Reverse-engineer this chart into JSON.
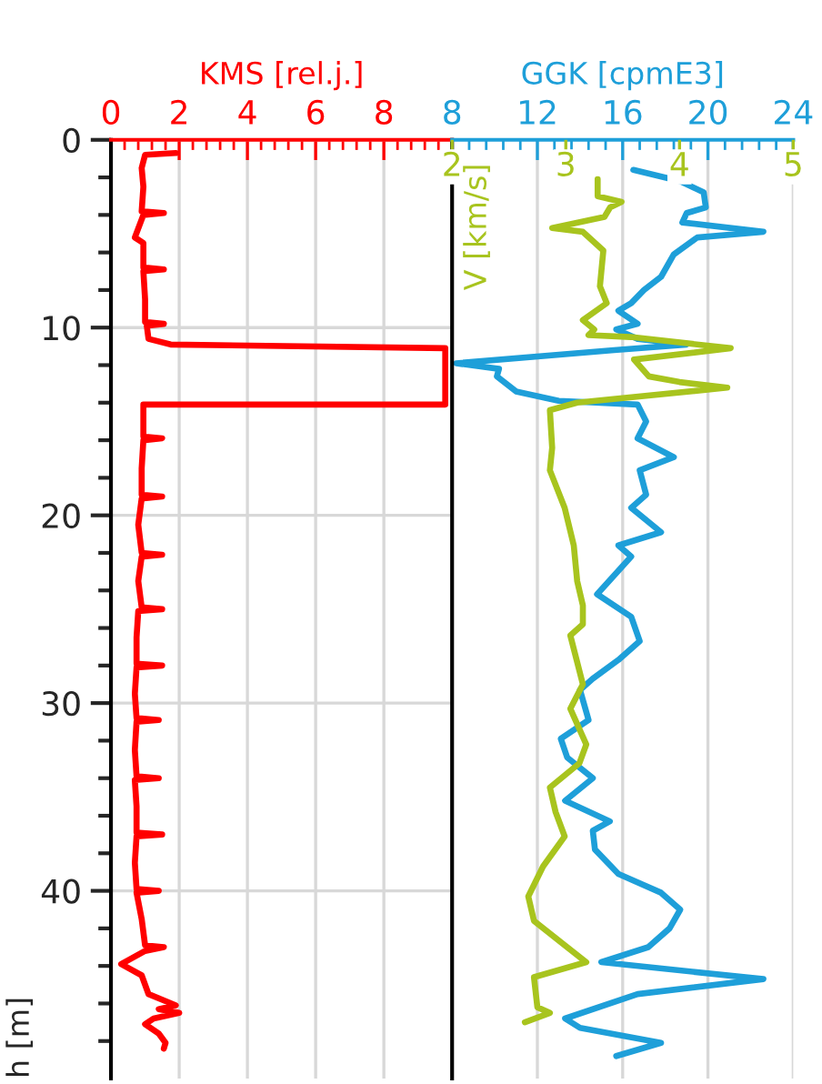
{
  "chart_data": [
    {
      "type": "line",
      "orientation": "horizontal",
      "xlabel": "KMS [rel.j.]",
      "ylabel": "h [m]",
      "xlim": [
        0,
        10
      ],
      "ylim": [
        50,
        0
      ],
      "grid": true,
      "xticks": [
        0,
        2,
        4,
        6,
        8,
        {
          "value": 10,
          "label": null
        },
        {
          "value": 0.4,
          "label": null
        },
        {
          "value": 0.8,
          "label": null
        },
        {
          "value": 1.2,
          "label": null
        },
        {
          "value": 1.6,
          "label": null
        },
        {
          "value": 2.4,
          "label": null
        },
        {
          "value": 2.8,
          "label": null
        },
        {
          "value": 3.2,
          "label": null
        },
        {
          "value": 3.6,
          "label": null
        },
        {
          "value": 4.4,
          "label": null
        },
        {
          "value": 4.8,
          "label": null
        },
        {
          "value": 5.2,
          "label": null
        },
        {
          "value": 5.6,
          "label": null
        },
        {
          "value": 6.4,
          "label": null
        },
        {
          "value": 6.8,
          "label": null
        },
        {
          "value": 7.2,
          "label": null
        },
        {
          "value": 7.6,
          "label": null
        },
        {
          "value": 8.4,
          "label": null
        },
        {
          "value": 8.8,
          "label": null
        },
        {
          "value": 9.2,
          "label": null
        },
        {
          "value": 9.6,
          "label": null
        }
      ],
      "yticks": [
        0,
        10,
        20,
        30,
        40,
        {
          "value": 2,
          "label": null
        },
        {
          "value": 4,
          "label": null
        },
        {
          "value": 6,
          "label": null
        },
        {
          "value": 8,
          "label": null
        },
        {
          "value": 12,
          "label": null
        },
        {
          "value": 14,
          "label": null
        },
        {
          "value": 16,
          "label": null
        },
        {
          "value": 18,
          "label": null
        },
        {
          "value": 22,
          "label": null
        },
        {
          "value": 24,
          "label": null
        },
        {
          "value": 26,
          "label": null
        },
        {
          "value": 28,
          "label": null
        },
        {
          "value": 32,
          "label": null
        },
        {
          "value": 34,
          "label": null
        },
        {
          "value": 36,
          "label": null
        },
        {
          "value": 38,
          "label": null
        },
        {
          "value": 42,
          "label": null
        },
        {
          "value": 44,
          "label": null
        },
        {
          "value": 46,
          "label": null
        },
        {
          "value": 48,
          "label": null
        }
      ],
      "series": [
        {
          "color": "#ff0000",
          "x": [
            0.7,
            0.8,
            1.5,
            2.5,
            3.8,
            3.9,
            4.0,
            5.2,
            5.5,
            6.8,
            6.9,
            7.0,
            8.5,
            9.7,
            9.8,
            9.9,
            10.6,
            10.9,
            11.1,
            14.1,
            14.1,
            15.8,
            15.9,
            16.0,
            17.5,
            18.9,
            19.0,
            19.1,
            20.5,
            22.0,
            22.1,
            22.2,
            23.5,
            24.9,
            25.0,
            25.1,
            26.5,
            27.9,
            28.0,
            28.1,
            29.5,
            30.8,
            30.9,
            31.0,
            32.5,
            33.9,
            34.0,
            34.1,
            35.5,
            36.9,
            37.0,
            37.1,
            38.5,
            39.9,
            40.0,
            40.1,
            41.5,
            42.9,
            43.0,
            43.2,
            43.9,
            44.5,
            45.5,
            46.1,
            46.3,
            46.5,
            46.8,
            47.1,
            47.6,
            48.1,
            48.4
          ],
          "values": [
            1.9,
            1.0,
            0.9,
            0.95,
            0.9,
            1.55,
            0.95,
            0.7,
            0.95,
            0.95,
            1.55,
            0.95,
            1.0,
            1.0,
            1.55,
            1.05,
            1.1,
            1.75,
            9.8,
            9.8,
            0.95,
            0.95,
            1.5,
            0.95,
            0.9,
            0.9,
            1.5,
            0.9,
            0.8,
            0.9,
            1.5,
            0.9,
            0.8,
            0.9,
            1.5,
            0.8,
            0.75,
            0.75,
            1.5,
            0.75,
            0.7,
            0.75,
            1.4,
            0.75,
            0.7,
            0.75,
            1.4,
            0.7,
            0.75,
            0.75,
            1.5,
            0.75,
            0.7,
            0.75,
            1.4,
            0.75,
            0.9,
            1.0,
            1.55,
            1.0,
            0.3,
            0.9,
            1.1,
            1.9,
            1.4,
            2.0,
            1.25,
            1.0,
            1.4,
            1.6,
            1.55
          ]
        }
      ]
    },
    {
      "type": "line",
      "orientation": "horizontal",
      "xlabel": "GGK [cpmE3]",
      "x2label": "V [km/s]",
      "xlim": [
        8,
        24
      ],
      "x2lim": [
        2,
        5
      ],
      "ylim": [
        50,
        0
      ],
      "grid": true,
      "tick_labels": "x",
      "xticks": [
        8,
        12,
        16,
        20,
        24,
        {
          "value": 8.8,
          "label": null
        },
        {
          "value": 9.6,
          "label": null
        },
        {
          "value": 10.4,
          "label": null
        },
        {
          "value": 11.2,
          "label": null
        },
        {
          "value": 12.8,
          "label": null
        },
        {
          "value": 13.6,
          "label": null
        },
        {
          "value": 14.4,
          "label": null
        },
        {
          "value": 15.2,
          "label": null
        },
        {
          "value": 16.8,
          "label": null
        },
        {
          "value": 17.6,
          "label": null
        },
        {
          "value": 18.4,
          "label": null
        },
        {
          "value": 19.2,
          "label": null
        },
        {
          "value": 20.8,
          "label": null
        },
        {
          "value": 21.6,
          "label": null
        },
        {
          "value": 22.4,
          "label": null
        },
        {
          "value": 23.2,
          "label": null
        }
      ],
      "x2ticks": [
        2,
        3,
        4,
        5
      ],
      "yticks": [
        {
          "value": 0,
          "label": null
        },
        {
          "value": 10,
          "label": null
        },
        {
          "value": 20,
          "label": null
        },
        {
          "value": 30,
          "label": null
        },
        {
          "value": 40,
          "label": null
        }
      ],
      "series": [
        {
          "color": "#a8c41e",
          "axis": "x2",
          "x": [
            2.1,
            3.0,
            3.3,
            3.6,
            4.1,
            4.7,
            4.9,
            5.9,
            7.8,
            8.7,
            9.6,
            10.1,
            10.4,
            10.5,
            11.1,
            11.7,
            12.6,
            12.9,
            13.2,
            14.0,
            14.4,
            16.4,
            17.6,
            19.6,
            21.6,
            23.5,
            24.8,
            25.8,
            26.4,
            29.0,
            30.3,
            32.2,
            33.2,
            34.5,
            35.8,
            37.1,
            38.7,
            40.3,
            41.6,
            42.9,
            43.8,
            44.6,
            46.2,
            46.5,
            47.0
          ],
          "values": [
            3.28,
            3.28,
            3.49,
            3.39,
            3.34,
            2.88,
            3.15,
            3.33,
            3.3,
            3.36,
            3.15,
            3.25,
            3.2,
            3.57,
            4.45,
            3.6,
            3.73,
            4.0,
            4.42,
            3.1,
            2.86,
            2.88,
            2.86,
            2.99,
            3.07,
            3.1,
            3.15,
            3.15,
            3.04,
            3.15,
            3.04,
            3.18,
            3.12,
            2.86,
            2.91,
            2.99,
            2.8,
            2.67,
            2.72,
            2.99,
            3.18,
            2.72,
            2.75,
            2.86,
            2.64
          ]
        },
        {
          "color": "#1e9fd9",
          "x": [
            1.6,
            2.2,
            2.8,
            3.6,
            3.9,
            4.4,
            4.9,
            5.2,
            6.1,
            7.3,
            8.0,
            8.7,
            9.1,
            9.8,
            10.1,
            10.6,
            10.9,
            11.2,
            11.9,
            12.2,
            12.6,
            13.4,
            13.9,
            14.1,
            15.0,
            15.9,
            16.9,
            17.6,
            18.9,
            19.6,
            20.9,
            21.6,
            22.2,
            24.2,
            25.4,
            26.7,
            27.7,
            28.7,
            29.3,
            30.9,
            31.9,
            32.9,
            34.0,
            35.2,
            36.3,
            36.8,
            37.8,
            39.1,
            40.1,
            41.0,
            42.0,
            43.0,
            43.8,
            44.7,
            45.5,
            46.8,
            47.3,
            48.1,
            48.8
          ],
          "values": [
            16.5,
            18.7,
            19.8,
            19.9,
            19.0,
            18.8,
            22.6,
            19.5,
            18.4,
            17.8,
            17.0,
            16.4,
            15.8,
            16.7,
            15.7,
            16.7,
            19.0,
            15.6,
            8.2,
            10.2,
            10.1,
            11.0,
            13.0,
            16.7,
            17.1,
            16.7,
            18.4,
            16.8,
            17.1,
            16.4,
            17.8,
            15.8,
            16.4,
            14.8,
            16.4,
            16.8,
            15.8,
            14.6,
            14.0,
            14.4,
            13.1,
            13.4,
            14.6,
            13.3,
            15.4,
            14.6,
            14.7,
            15.8,
            17.8,
            18.7,
            18.2,
            17.2,
            15.0,
            22.6,
            16.7,
            13.3,
            14.0,
            17.8,
            15.7
          ]
        }
      ]
    }
  ]
}
